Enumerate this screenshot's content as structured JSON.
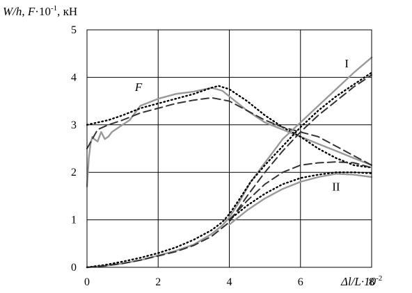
{
  "chart_data": {
    "type": "line",
    "ylabel_parts": {
      "w": "W/h",
      "sep": ", ",
      "f": "F",
      "mult": "·10",
      "exp": "-1",
      "unit": ", кН"
    },
    "xlabel_parts": {
      "main": "Δl/L·10",
      "exp": "-2"
    },
    "xlim": [
      0,
      8
    ],
    "ylim": [
      0,
      5
    ],
    "x_ticks": [
      "0",
      "2",
      "4",
      "6",
      "8"
    ],
    "y_ticks": [
      "0",
      "1",
      "2",
      "3",
      "4",
      "5"
    ],
    "x_tick_values": [
      0,
      2,
      4,
      6,
      8
    ],
    "y_tick_values": [
      0,
      1,
      2,
      3,
      4,
      5
    ],
    "grid": true,
    "annotations": [
      {
        "text": "F",
        "x": 1.45,
        "y": 3.8,
        "italic": true
      },
      {
        "text": "I",
        "x": 7.3,
        "y": 4.3,
        "italic": false
      },
      {
        "text": "II",
        "x": 7.0,
        "y": 1.7,
        "italic": false
      }
    ],
    "series": [
      {
        "group": "F",
        "style": "solid",
        "color": "#999999",
        "x": [
          0,
          0.05,
          0.1,
          0.15,
          0.2,
          0.3,
          0.4,
          0.5,
          0.6,
          0.7,
          0.8,
          1.0,
          1.2,
          1.5,
          2.0,
          2.5,
          3.0,
          3.5,
          3.8,
          4.0,
          4.5,
          5.0,
          5.5,
          6.0,
          6.5,
          7.0,
          7.5,
          8.0
        ],
        "y": [
          1.7,
          2.3,
          2.6,
          2.75,
          2.7,
          2.65,
          2.85,
          2.7,
          2.75,
          2.85,
          2.9,
          3.0,
          3.1,
          3.4,
          3.55,
          3.65,
          3.7,
          3.78,
          3.72,
          3.6,
          3.3,
          3.05,
          2.9,
          2.75,
          2.6,
          2.45,
          2.3,
          2.15
        ]
      },
      {
        "group": "F",
        "style": "dotted",
        "color": "#000000",
        "x": [
          0,
          0.3,
          0.6,
          1.0,
          1.5,
          2.0,
          2.5,
          3.0,
          3.5,
          3.7,
          4.0,
          4.5,
          5.0,
          5.5,
          6.0,
          6.5,
          7.0,
          7.5,
          8.0
        ],
        "y": [
          3.0,
          3.05,
          3.1,
          3.2,
          3.35,
          3.45,
          3.55,
          3.65,
          3.78,
          3.82,
          3.75,
          3.5,
          3.2,
          2.95,
          2.75,
          2.5,
          2.3,
          2.15,
          2.1
        ]
      },
      {
        "group": "F",
        "style": "dashed",
        "color": "#333333",
        "x": [
          0,
          0.3,
          0.6,
          1.0,
          1.5,
          2.0,
          2.5,
          3.0,
          3.5,
          4.0,
          4.5,
          5.0,
          5.5,
          6.0,
          6.5,
          7.0,
          7.5,
          8.0
        ],
        "y": [
          2.5,
          2.9,
          3.0,
          3.1,
          3.25,
          3.35,
          3.45,
          3.52,
          3.57,
          3.5,
          3.3,
          3.1,
          2.95,
          2.85,
          2.75,
          2.55,
          2.35,
          2.15
        ]
      },
      {
        "group": "I",
        "style": "solid",
        "color": "#999999",
        "x": [
          0,
          0.5,
          1.0,
          1.5,
          2.0,
          2.5,
          3.0,
          3.5,
          3.8,
          4.0,
          4.3,
          4.6,
          5.0,
          5.5,
          6.0,
          6.5,
          7.0,
          7.5,
          8.0
        ],
        "y": [
          0,
          0.03,
          0.08,
          0.15,
          0.25,
          0.35,
          0.48,
          0.7,
          0.88,
          1.05,
          1.4,
          1.8,
          2.2,
          2.7,
          3.05,
          3.4,
          3.75,
          4.1,
          4.42
        ]
      },
      {
        "group": "I",
        "style": "dotted",
        "color": "#000000",
        "x": [
          0,
          0.5,
          1.0,
          1.5,
          2.0,
          2.5,
          3.0,
          3.5,
          3.8,
          4.0,
          4.3,
          4.6,
          5.0,
          5.5,
          6.0,
          6.5,
          7.0,
          7.5,
          8.0
        ],
        "y": [
          0,
          0.05,
          0.12,
          0.2,
          0.3,
          0.42,
          0.58,
          0.78,
          0.95,
          1.12,
          1.45,
          1.8,
          2.15,
          2.55,
          2.95,
          3.3,
          3.6,
          3.85,
          4.1
        ]
      },
      {
        "group": "I",
        "style": "dashed",
        "color": "#333333",
        "x": [
          0,
          0.5,
          1.0,
          1.5,
          2.0,
          2.5,
          3.0,
          3.5,
          4.0,
          4.5,
          5.0,
          5.5,
          6.0,
          6.5,
          7.0,
          7.5,
          8.0
        ],
        "y": [
          0,
          0.03,
          0.08,
          0.15,
          0.24,
          0.33,
          0.46,
          0.65,
          0.95,
          1.5,
          2.0,
          2.45,
          2.85,
          3.2,
          3.5,
          3.8,
          4.05
        ]
      },
      {
        "group": "II",
        "style": "solid",
        "color": "#999999",
        "x": [
          4.0,
          4.5,
          5.0,
          5.5,
          6.0,
          6.5,
          7.0,
          7.5,
          8.0
        ],
        "y": [
          0.9,
          1.2,
          1.45,
          1.65,
          1.8,
          1.9,
          1.97,
          1.95,
          1.9
        ]
      },
      {
        "group": "II",
        "style": "dotted",
        "color": "#000000",
        "x": [
          4.0,
          4.5,
          5.0,
          5.5,
          6.0,
          6.5,
          7.0,
          7.5,
          8.0
        ],
        "y": [
          1.0,
          1.3,
          1.55,
          1.75,
          1.88,
          1.95,
          2.0,
          2.0,
          1.98
        ]
      },
      {
        "group": "II",
        "style": "dashed",
        "color": "#333333",
        "x": [
          4.0,
          4.5,
          5.0,
          5.5,
          6.0,
          6.5,
          7.0,
          7.5,
          8.0
        ],
        "y": [
          1.0,
          1.4,
          1.75,
          2.0,
          2.15,
          2.2,
          2.22,
          2.2,
          2.1
        ]
      }
    ]
  }
}
